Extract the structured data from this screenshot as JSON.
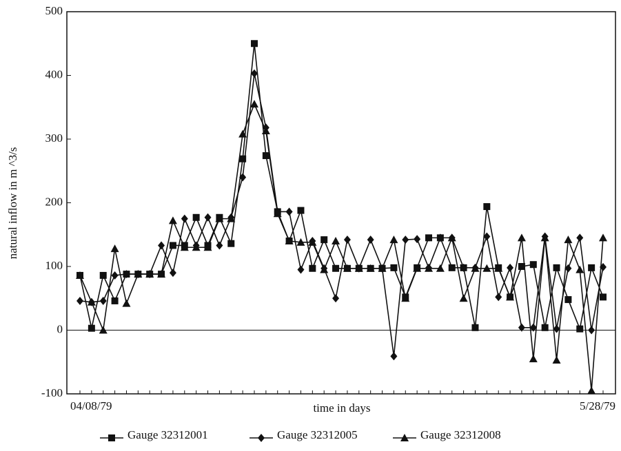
{
  "chart_data": {
    "type": "line",
    "x_label": "time in days",
    "y_label": "natural inflow in m ^3/s",
    "categories": [
      "04/08/79",
      null,
      null,
      null,
      null,
      null,
      null,
      null,
      null,
      null,
      null,
      null,
      null,
      null,
      null,
      null,
      null,
      null,
      null,
      null,
      null,
      null,
      null,
      null,
      null,
      null,
      null,
      null,
      null,
      null,
      null,
      null,
      null,
      null,
      null,
      null,
      null,
      null,
      null,
      null,
      null,
      null,
      null,
      null,
      null,
      "5/28/79"
    ],
    "ylim": [
      -100,
      500
    ],
    "yticks": [
      -100,
      0,
      100,
      200,
      300,
      400,
      500
    ],
    "zero_line": true,
    "legend": "bottom",
    "series": [
      {
        "name": "Gauge 32312001",
        "color": "#111111",
        "marker": "square",
        "values": [
          86,
          3,
          86,
          46,
          88,
          88,
          88,
          88,
          133,
          133,
          177,
          133,
          177,
          136,
          269,
          450,
          274,
          186,
          140,
          188,
          97,
          142,
          97,
          97,
          97,
          97,
          97,
          98,
          52,
          98,
          145,
          145,
          98,
          98,
          4,
          194,
          98,
          52,
          100,
          103,
          4,
          98,
          48,
          2,
          98,
          52
        ]
      },
      {
        "name": "Gauge 32312005",
        "color": "#111111",
        "marker": "diamond",
        "values": [
          46,
          44,
          46,
          86,
          88,
          88,
          88,
          133,
          90,
          175,
          133,
          177,
          133,
          177,
          240,
          403,
          318,
          186,
          186,
          95,
          140,
          97,
          50,
          142,
          97,
          142,
          97,
          -41,
          142,
          143,
          98,
          145,
          145,
          98,
          98,
          147,
          52,
          98,
          4,
          4,
          147,
          2,
          97,
          145,
          0,
          99
        ]
      },
      {
        "name": "Gauge 32312008",
        "color": "#111111",
        "marker": "triangle",
        "values": [
          86,
          44,
          0,
          128,
          42,
          88,
          88,
          88,
          172,
          130,
          130,
          130,
          175,
          175,
          308,
          355,
          313,
          183,
          140,
          138,
          138,
          95,
          140,
          97,
          97,
          97,
          97,
          142,
          50,
          97,
          97,
          97,
          145,
          50,
          97,
          97,
          97,
          52,
          145,
          -45,
          145,
          -47,
          142,
          95,
          -95,
          145
        ]
      }
    ]
  }
}
